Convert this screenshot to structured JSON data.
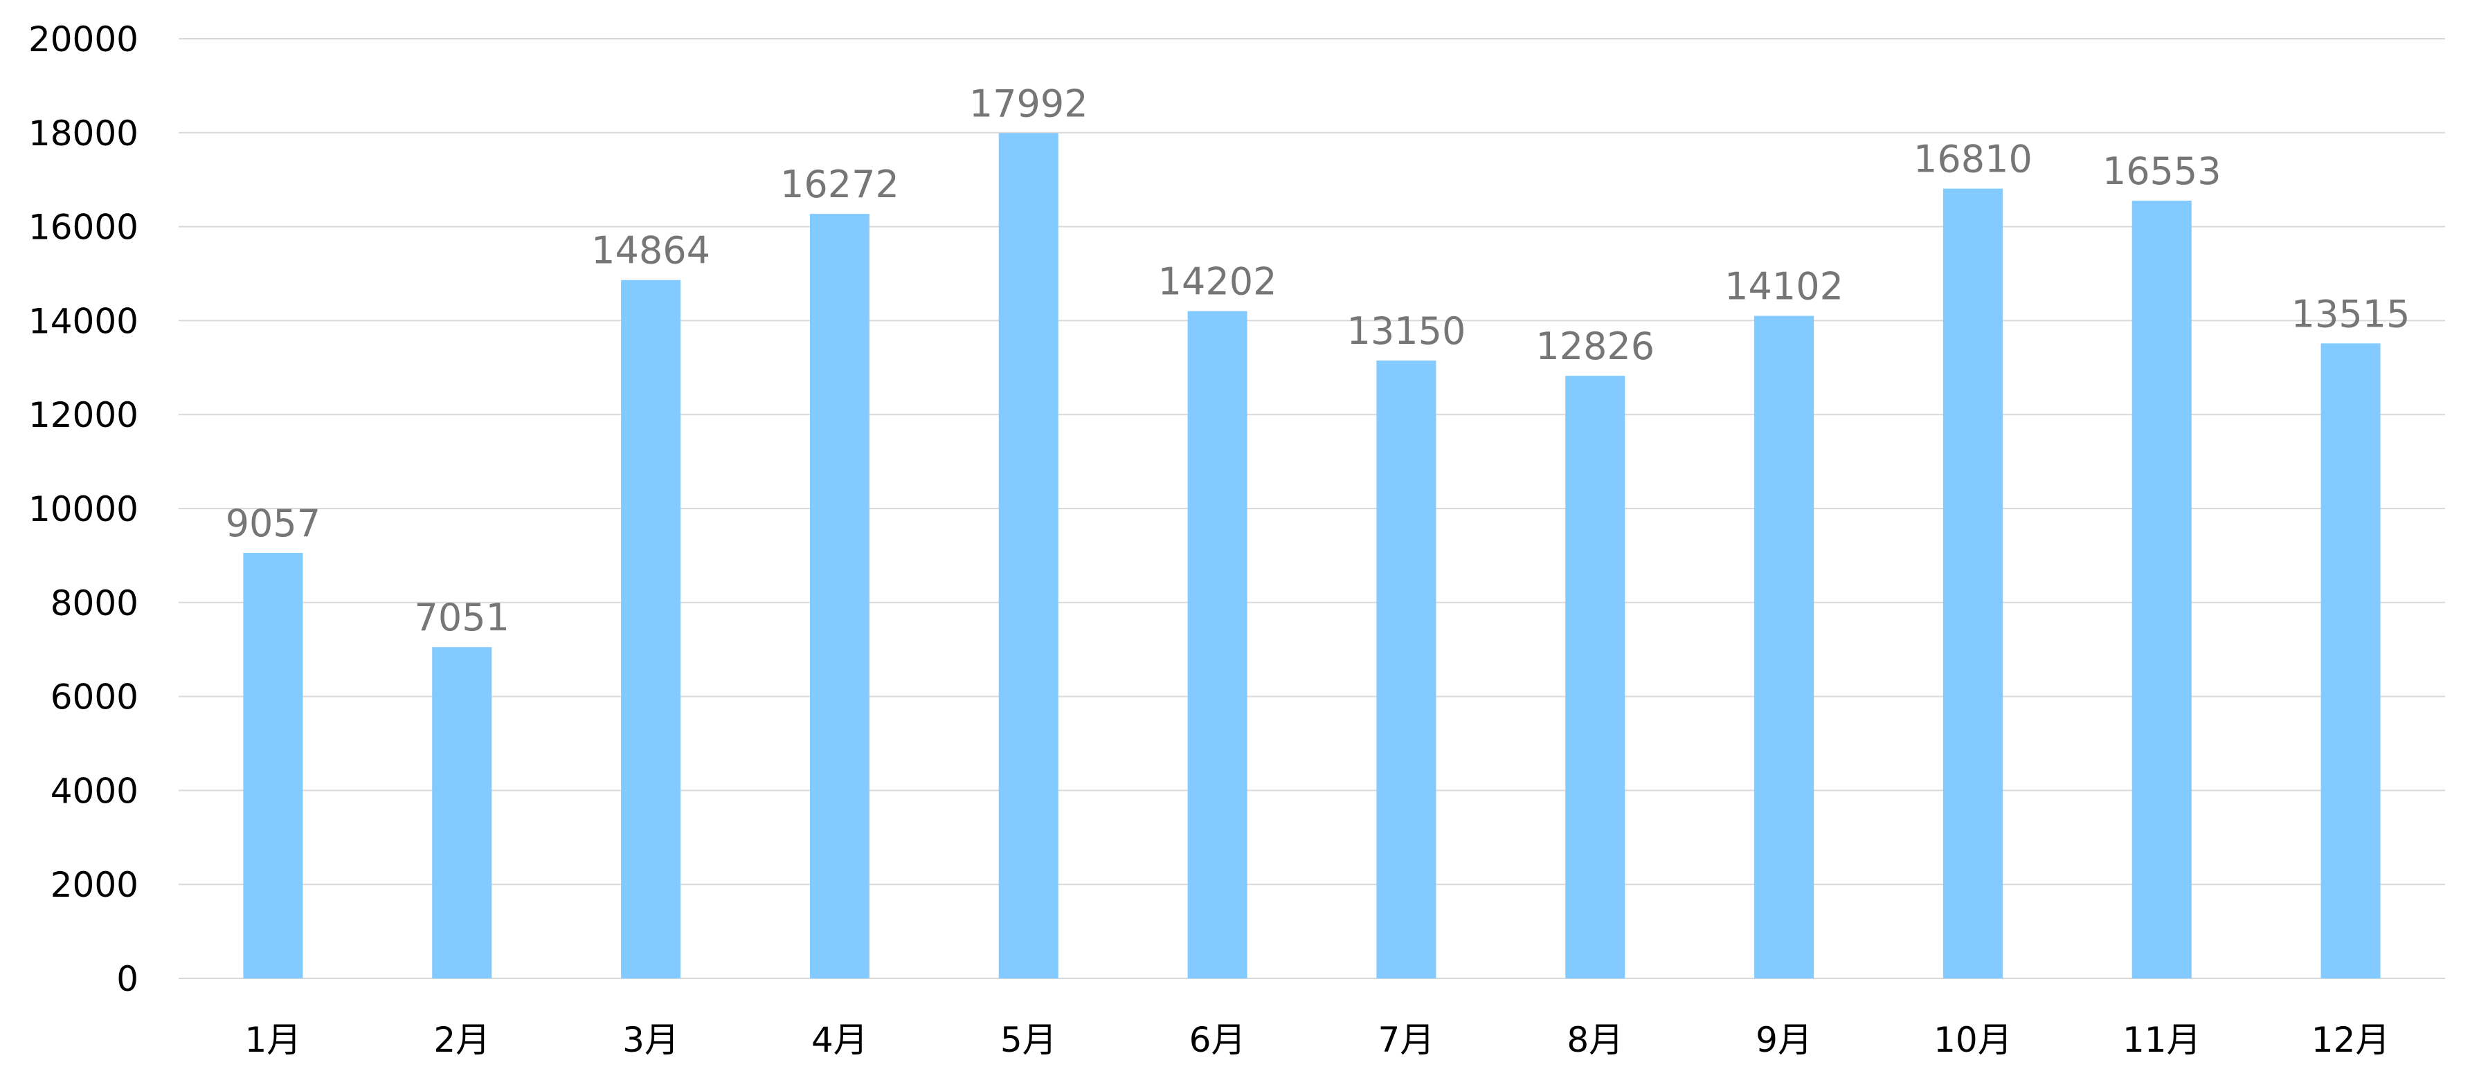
{
  "chart_data": {
    "type": "bar",
    "categories": [
      "1月",
      "2月",
      "3月",
      "4月",
      "5月",
      "6月",
      "7月",
      "8月",
      "9月",
      "10月",
      "11月",
      "12月"
    ],
    "values": [
      9057,
      7051,
      14864,
      16272,
      17992,
      14202,
      13150,
      12826,
      14102,
      16810,
      16553,
      13515
    ],
    "ylim": [
      0,
      20000
    ],
    "yticks": [
      0,
      2000,
      4000,
      6000,
      8000,
      10000,
      12000,
      14000,
      16000,
      18000,
      20000
    ],
    "title": "",
    "xlabel": "",
    "ylabel": "",
    "grid": true,
    "legend": "none",
    "data_labels": true,
    "bar_color": "#82CAFF"
  }
}
